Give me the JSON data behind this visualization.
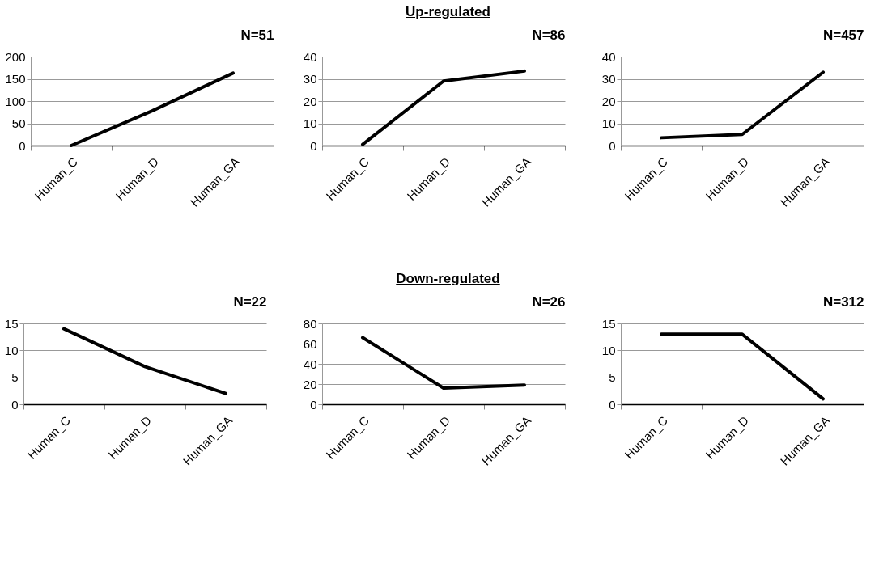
{
  "chart_data": [
    {
      "type": "line",
      "title": "N=51",
      "annotations": [
        "Up-regulated"
      ],
      "categories": [
        "Human_C",
        "Human_D",
        "Human_GA"
      ],
      "series": [
        {
          "color": "#000000",
          "values": [
            0,
            78,
            163
          ]
        }
      ],
      "ylim": [
        0,
        200
      ],
      "yticks": [
        0,
        50,
        100,
        150,
        200
      ],
      "grid": "y",
      "legend": false,
      "marker": "none",
      "line_style": "solid"
    },
    {
      "type": "line",
      "title": "N=86",
      "categories": [
        "Human_C",
        "Human_D",
        "Human_GA"
      ],
      "series": [
        {
          "color": "#000000",
          "values": [
            0.5,
            29,
            33.5
          ]
        }
      ],
      "ylim": [
        0,
        40
      ],
      "yticks": [
        0,
        10,
        20,
        30,
        40
      ],
      "grid": "y",
      "legend": false,
      "marker": "none",
      "line_style": "solid"
    },
    {
      "type": "line",
      "title": "N=457",
      "categories": [
        "Human_C",
        "Human_D",
        "Human_GA"
      ],
      "series": [
        {
          "color": "#000000",
          "values": [
            3.5,
            5,
            33
          ]
        }
      ],
      "ylim": [
        0,
        40
      ],
      "yticks": [
        0,
        10,
        20,
        30,
        40
      ],
      "grid": "y",
      "legend": false,
      "marker": "none",
      "line_style": "solid"
    },
    {
      "type": "line",
      "title": "N=22",
      "annotations": [
        "Down-regulated"
      ],
      "categories": [
        "Human_C",
        "Human_D",
        "Human_GA"
      ],
      "series": [
        {
          "color": "#000000",
          "values": [
            14,
            7,
            2
          ]
        }
      ],
      "ylim": [
        0,
        15
      ],
      "yticks": [
        0,
        5,
        10,
        15
      ],
      "grid": "y",
      "legend": false,
      "marker": "none",
      "line_style": "solid"
    },
    {
      "type": "line",
      "title": "N=26",
      "categories": [
        "Human_C",
        "Human_D",
        "Human_GA"
      ],
      "series": [
        {
          "color": "#000000",
          "values": [
            66,
            16,
            19
          ]
        }
      ],
      "ylim": [
        0,
        80
      ],
      "yticks": [
        0,
        20,
        40,
        60,
        80
      ],
      "grid": "y",
      "legend": false,
      "marker": "none",
      "line_style": "solid"
    },
    {
      "type": "line",
      "title": "N=312",
      "categories": [
        "Human_C",
        "Human_D",
        "Human_GA"
      ],
      "series": [
        {
          "color": "#000000",
          "values": [
            13,
            13,
            1
          ]
        }
      ],
      "ylim": [
        0,
        15
      ],
      "yticks": [
        0,
        5,
        10,
        15
      ],
      "grid": "y",
      "legend": false,
      "marker": "none",
      "line_style": "solid"
    }
  ]
}
